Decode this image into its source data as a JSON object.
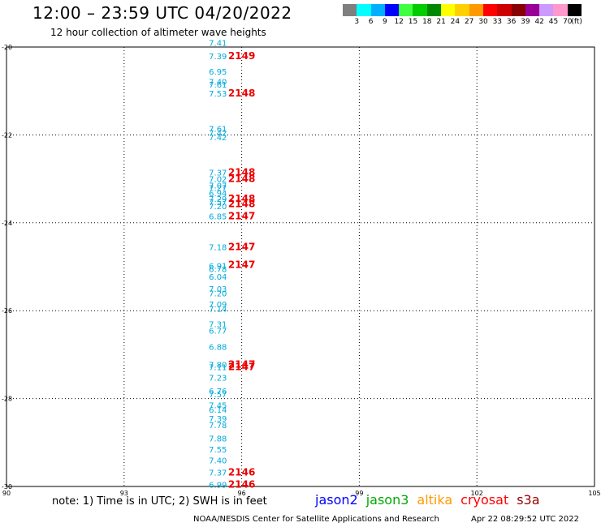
{
  "header": {
    "title": "12:00 – 23:59 UTC 04/20/2022",
    "subtitle": "12 hour collection of altimeter wave heights"
  },
  "colorbar": {
    "unit_label": "(ft)",
    "entries": [
      {
        "label": "3",
        "color": "#7f7f7f"
      },
      {
        "label": "6",
        "color": "#00ffff"
      },
      {
        "label": "9",
        "color": "#00b0ff"
      },
      {
        "label": "12",
        "color": "#0000ff"
      },
      {
        "label": "15",
        "color": "#40ff40"
      },
      {
        "label": "18",
        "color": "#00cc00"
      },
      {
        "label": "21",
        "color": "#008800"
      },
      {
        "label": "24",
        "color": "#ffff00"
      },
      {
        "label": "27",
        "color": "#ffd000"
      },
      {
        "label": "30",
        "color": "#ff9900"
      },
      {
        "label": "33",
        "color": "#ff0000"
      },
      {
        "label": "36",
        "color": "#cc0000"
      },
      {
        "label": "39",
        "color": "#880000"
      },
      {
        "label": "42",
        "color": "#990099"
      },
      {
        "label": "45",
        "color": "#cc99ff"
      },
      {
        "label": "70",
        "color": "#ff99cc"
      },
      {
        "label": "",
        "color": "#000000"
      }
    ]
  },
  "footer": {
    "note": "note: 1) Time is in UTC; 2) SWH is in feet",
    "credit": "NOAA/NESDIS Center for Satellite Applications and Research",
    "timestamp": "Apr 22 08:29:52 UTC 2022"
  },
  "legend": [
    {
      "name": "jason2",
      "color": "#0000ff"
    },
    {
      "name": "jason3",
      "color": "#00aa00"
    },
    {
      "name": "altika",
      "color": "#ff9900"
    },
    {
      "name": "cryosat",
      "color": "#ff0000"
    },
    {
      "name": "s3a",
      "color": "#990000"
    }
  ],
  "chart_data": {
    "type": "scatter",
    "xlim": [
      90,
      105
    ],
    "ylim": [
      -30,
      -20
    ],
    "x_ticks": [
      "90",
      "93",
      "96",
      "99",
      "102",
      "105"
    ],
    "y_ticks": [
      "-20",
      "-22",
      "-24",
      "-26",
      "-28",
      "-30"
    ],
    "grid": true,
    "series": [
      {
        "name": "SWH labels",
        "color": "#00aadd",
        "points": [
          {
            "x": 95.6,
            "y": -19.9,
            "label": "7.41"
          },
          {
            "x": 95.6,
            "y": -20.2,
            "label": "7.39"
          },
          {
            "x": 95.6,
            "y": -20.55,
            "label": "6.95"
          },
          {
            "x": 95.6,
            "y": -20.78,
            "label": "7.40"
          },
          {
            "x": 95.6,
            "y": -20.85,
            "label": "7.61"
          },
          {
            "x": 95.6,
            "y": -21.05,
            "label": "7.53"
          },
          {
            "x": 95.6,
            "y": -21.85,
            "label": "7.61"
          },
          {
            "x": 95.6,
            "y": -21.95,
            "label": "7.42"
          },
          {
            "x": 95.6,
            "y": -22.05,
            "label": "7.42"
          },
          {
            "x": 95.6,
            "y": -22.85,
            "label": "7.37"
          },
          {
            "x": 95.6,
            "y": -23.0,
            "label": "7.02"
          },
          {
            "x": 95.6,
            "y": -23.15,
            "label": "7.07"
          },
          {
            "x": 95.6,
            "y": -23.2,
            "label": "7.27"
          },
          {
            "x": 95.6,
            "y": -23.32,
            "label": "6.94"
          },
          {
            "x": 95.6,
            "y": -23.45,
            "label": "7.29"
          },
          {
            "x": 95.6,
            "y": -23.52,
            "label": "7.57"
          },
          {
            "x": 95.6,
            "y": -23.62,
            "label": "7.20"
          },
          {
            "x": 95.6,
            "y": -23.85,
            "label": "6.85"
          },
          {
            "x": 95.6,
            "y": -24.55,
            "label": "7.18"
          },
          {
            "x": 95.6,
            "y": -24.97,
            "label": "6.91"
          },
          {
            "x": 95.6,
            "y": -25.05,
            "label": "6.78"
          },
          {
            "x": 95.6,
            "y": -25.22,
            "label": "6.04"
          },
          {
            "x": 95.6,
            "y": -25.5,
            "label": "7.03"
          },
          {
            "x": 95.6,
            "y": -25.6,
            "label": "7.20"
          },
          {
            "x": 95.6,
            "y": -25.85,
            "label": "7.09"
          },
          {
            "x": 95.6,
            "y": -25.95,
            "label": "7.14"
          },
          {
            "x": 95.6,
            "y": -26.3,
            "label": "7.31"
          },
          {
            "x": 95.6,
            "y": -26.45,
            "label": "6.77"
          },
          {
            "x": 95.6,
            "y": -26.82,
            "label": "6.88"
          },
          {
            "x": 95.6,
            "y": -27.22,
            "label": "7.80"
          },
          {
            "x": 95.6,
            "y": -27.28,
            "label": "7.11"
          },
          {
            "x": 95.6,
            "y": -27.52,
            "label": "7.23"
          },
          {
            "x": 95.6,
            "y": -27.82,
            "label": "6.76"
          },
          {
            "x": 95.6,
            "y": -27.9,
            "label": "7.57"
          },
          {
            "x": 95.6,
            "y": -28.15,
            "label": "7.45"
          },
          {
            "x": 95.6,
            "y": -28.25,
            "label": "6.14"
          },
          {
            "x": 95.6,
            "y": -28.45,
            "label": "7.39"
          },
          {
            "x": 95.6,
            "y": -28.6,
            "label": "7.78"
          },
          {
            "x": 95.6,
            "y": -28.9,
            "label": "7.88"
          },
          {
            "x": 95.6,
            "y": -29.15,
            "label": "7.55"
          },
          {
            "x": 95.6,
            "y": -29.4,
            "label": "7.40"
          },
          {
            "x": 95.6,
            "y": -29.68,
            "label": "7.37"
          },
          {
            "x": 95.6,
            "y": -29.95,
            "label": "6.99"
          }
        ]
      },
      {
        "name": "pass numbers",
        "color": "#ee0000",
        "points": [
          {
            "x": 96.0,
            "y": -20.2,
            "label": "2149"
          },
          {
            "x": 96.0,
            "y": -21.05,
            "label": "2148"
          },
          {
            "x": 96.0,
            "y": -22.85,
            "label": "2148"
          },
          {
            "x": 96.0,
            "y": -23.0,
            "label": "2148"
          },
          {
            "x": 96.0,
            "y": -23.45,
            "label": "2148"
          },
          {
            "x": 96.0,
            "y": -23.57,
            "label": "2148"
          },
          {
            "x": 96.0,
            "y": -23.85,
            "label": "2147"
          },
          {
            "x": 96.0,
            "y": -24.55,
            "label": "2147"
          },
          {
            "x": 96.0,
            "y": -24.95,
            "label": "2147"
          },
          {
            "x": 96.0,
            "y": -27.22,
            "label": "2147"
          },
          {
            "x": 96.0,
            "y": -27.28,
            "label": "2147"
          },
          {
            "x": 96.0,
            "y": -29.68,
            "label": "2146"
          },
          {
            "x": 96.0,
            "y": -29.95,
            "label": "2146"
          }
        ]
      }
    ]
  }
}
